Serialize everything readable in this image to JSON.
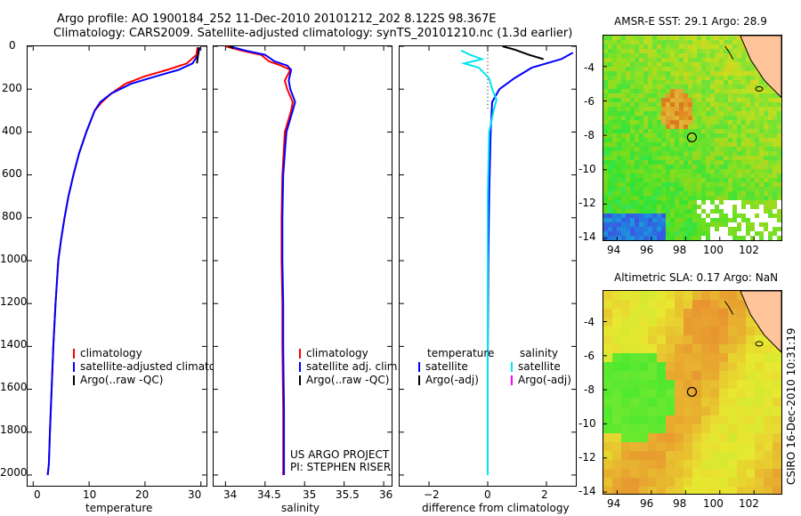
{
  "header": {
    "line1": "Argo profile: AO 1900184_252 11-Dec-2010 20101212_202 8.122S 98.367E",
    "line2": "Climatology: CARS2009. Satellite-adjusted climatology: synTS_20101210.nc (1.3d earlier)"
  },
  "colors": {
    "climatology": "#ff0000",
    "satellite": "#0000ff",
    "argo": "#000000",
    "cyan": "#00e5ee",
    "magenta": "#ff00ff"
  },
  "chart_data": [
    {
      "type": "line",
      "name": "temperature-profile",
      "xlabel": "temperature",
      "xlim": [
        -1,
        31
      ],
      "ylim": [
        2050,
        0
      ],
      "xticks": [
        "0",
        "10",
        "20",
        "30"
      ],
      "yticks": [
        "0",
        "200",
        "400",
        "600",
        "800",
        "1000",
        "1200",
        "1400",
        "1600",
        "1800",
        "2000"
      ],
      "series": [
        {
          "name": "climatology",
          "color": "#ff0000",
          "x": [
            29.4,
            29.2,
            27.5,
            24.0,
            20.0,
            16.5,
            14.0,
            12.3,
            11.0,
            9.5,
            8.2,
            7.2,
            6.3,
            5.6,
            5.0,
            4.5,
            4.0,
            3.6,
            3.3,
            3.0,
            2.8,
            2.6
          ],
          "y": [
            5,
            40,
            80,
            110,
            140,
            175,
            220,
            260,
            300,
            400,
            500,
            600,
            700,
            800,
            900,
            1000,
            1200,
            1400,
            1600,
            1800,
            1950,
            2000
          ]
        },
        {
          "name": "satellite-adjusted climatology",
          "color": "#0000ff",
          "x": [
            29.8,
            29.5,
            28.5,
            26.0,
            22.0,
            17.5,
            14.0,
            12.0,
            11.0,
            9.5,
            8.2,
            7.2,
            6.3,
            5.6,
            5.0,
            4.5,
            4.0,
            3.6,
            3.3,
            3.0,
            2.8,
            2.6
          ],
          "y": [
            5,
            40,
            80,
            110,
            140,
            175,
            220,
            260,
            300,
            400,
            500,
            600,
            700,
            800,
            900,
            1000,
            1200,
            1400,
            1600,
            1800,
            1950,
            2000
          ]
        },
        {
          "name": "Argo(..raw -QC)",
          "color": "#000000",
          "x": [
            29.6,
            29.5,
            29.3
          ],
          "y": [
            5,
            40,
            80
          ]
        }
      ],
      "legend": [
        "climatology",
        "satellite-adjusted climatology",
        "Argo(..raw -QC)"
      ]
    },
    {
      "type": "line",
      "name": "salinity-profile",
      "xlabel": "salinity",
      "xlim": [
        33.85,
        36.1
      ],
      "ylim": [
        2050,
        0
      ],
      "xticks": [
        "34",
        "34.5",
        "35",
        "35.5",
        "36"
      ],
      "series": [
        {
          "name": "climatology",
          "color": "#ff0000",
          "x": [
            34.0,
            34.2,
            34.45,
            34.55,
            34.7,
            34.82,
            34.75,
            34.78,
            34.85,
            34.83,
            34.75,
            34.72,
            34.71,
            34.71,
            34.72,
            34.72,
            34.73,
            34.73
          ],
          "y": [
            0,
            20,
            40,
            70,
            90,
            110,
            160,
            200,
            260,
            300,
            400,
            600,
            800,
            1000,
            1200,
            1400,
            1700,
            2000
          ]
        },
        {
          "name": "satellite adj. clim.",
          "color": "#0000ff",
          "x": [
            34.05,
            34.25,
            34.5,
            34.62,
            34.78,
            34.83,
            34.8,
            34.82,
            34.88,
            34.85,
            34.77,
            34.73,
            34.72,
            34.72,
            34.73,
            34.73,
            34.74,
            34.74
          ],
          "y": [
            0,
            20,
            40,
            70,
            90,
            110,
            160,
            200,
            260,
            300,
            400,
            600,
            800,
            1000,
            1200,
            1400,
            1700,
            2000
          ]
        },
        {
          "name": "Argo(..raw -QC)",
          "color": "#000000",
          "x": [
            34.05,
            34.1
          ],
          "y": [
            0,
            10
          ]
        }
      ],
      "legend": [
        "climatology",
        "satellite adj. clim.",
        "Argo(..raw -QC)"
      ],
      "annotations": [
        "US ARGO PROJECT",
        "PI: STEPHEN RISER"
      ]
    },
    {
      "type": "line",
      "name": "difference-profile",
      "xlabel": "difference from climatology",
      "xlim": [
        -3,
        3
      ],
      "ylim": [
        2050,
        0
      ],
      "xticks": [
        "−2",
        "0",
        "2"
      ],
      "series": [
        {
          "name": "temperature satellite",
          "color": "#0000ff",
          "x": [
            2.9,
            2.5,
            1.5,
            0.9,
            0.4,
            0.15,
            0.1,
            0.05,
            0.02,
            0.0,
            0.0
          ],
          "y": [
            30,
            60,
            100,
            150,
            200,
            260,
            400,
            700,
            1000,
            1500,
            2000
          ]
        },
        {
          "name": "Argo(-adj) temperature",
          "color": "#000000",
          "x": [
            0.5,
            0.9,
            1.4,
            1.9
          ],
          "y": [
            0,
            15,
            40,
            60
          ]
        },
        {
          "name": "salinity satellite",
          "color": "#00e5ee",
          "x": [
            -0.9,
            -0.6,
            -0.2,
            -0.8,
            -0.3,
            0.05,
            0.15,
            0.3,
            0.2,
            0.05,
            0.0,
            0.0,
            0.0,
            0.0
          ],
          "y": [
            20,
            40,
            60,
            80,
            100,
            150,
            200,
            250,
            300,
            400,
            700,
            1000,
            1500,
            2000
          ]
        }
      ],
      "legend_left_header": "temperature",
      "legend_right_header": "salinity",
      "legend_left": [
        "satellite",
        "Argo(-adj)"
      ],
      "legend_right": [
        "satellite",
        "Argo(-adj)"
      ]
    },
    {
      "type": "heatmap",
      "name": "sst-map",
      "title": "AMSR-E SST: 29.1  Argo: 28.9",
      "xticks": [
        "94",
        "96",
        "98",
        "100",
        "102"
      ],
      "yticks": [
        "-4",
        "-6",
        "-8",
        "-10",
        "-12",
        "-14"
      ],
      "marker": {
        "lon": 98.37,
        "lat": -8.12
      }
    },
    {
      "type": "heatmap",
      "name": "sla-map",
      "title": "Altimetric SLA: 0.17  Argo: NaN",
      "xticks": [
        "94",
        "96",
        "98",
        "100",
        "102"
      ],
      "yticks": [
        "-4",
        "-6",
        "-8",
        "-10",
        "-12",
        "-14"
      ],
      "marker": {
        "lon": 98.37,
        "lat": -8.12
      }
    }
  ],
  "footer_vertical": "CSIRO 16-Dec-2010 10:31:19"
}
